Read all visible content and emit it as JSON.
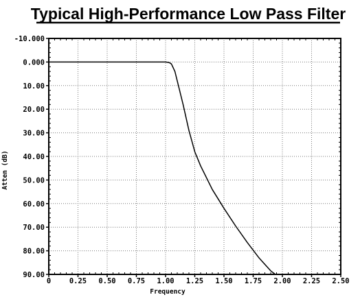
{
  "chart_data": {
    "type": "line",
    "title": "Typical High-Performance Low Pass Filter",
    "xlabel": "Frequency",
    "ylabel": "Atten (dB)",
    "xlim": [
      0,
      2.5
    ],
    "ylim": [
      -10,
      90
    ],
    "y_inverted": true,
    "grid": true,
    "x_ticks": [
      "0",
      "0.25",
      "0.50",
      "0.75",
      "1.00",
      "1.25",
      "1.50",
      "1.75",
      "2.00",
      "2.25",
      "2.50"
    ],
    "y_ticks": [
      "-10.000",
      "0.000",
      "10.00",
      "20.00",
      "30.00",
      "40.00",
      "50.00",
      "60.00",
      "70.00",
      "80.00",
      "90.00"
    ],
    "series": [
      {
        "color": "#000000",
        "x": [
          0,
          0.25,
          0.5,
          0.75,
          1.0,
          1.03,
          1.05,
          1.08,
          1.1,
          1.15,
          1.2,
          1.25,
          1.3,
          1.4,
          1.5,
          1.6,
          1.7,
          1.8,
          1.9,
          1.94
        ],
        "y": [
          0,
          0,
          0,
          0,
          0,
          0.2,
          0.8,
          4,
          8,
          18,
          29,
          38,
          44,
          54,
          62,
          69.5,
          76.5,
          83,
          88.5,
          90
        ]
      }
    ]
  }
}
